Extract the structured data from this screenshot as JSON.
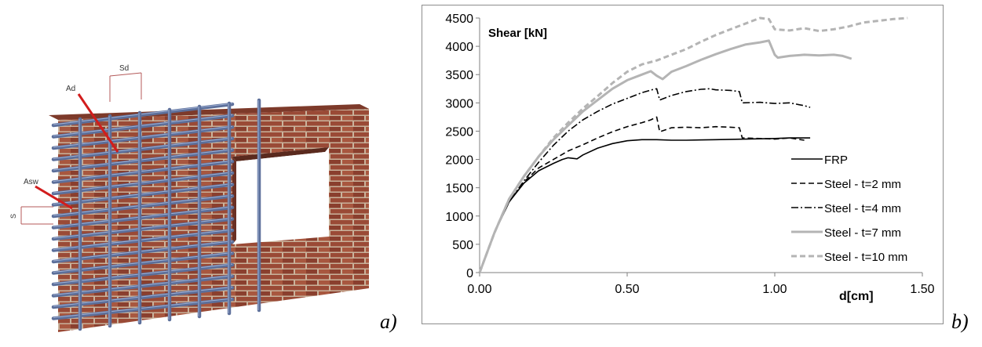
{
  "panels": {
    "a": {
      "letter": "a)",
      "labels": {
        "sd": "Sd",
        "ad": "Ad",
        "asw": "Asw",
        "s": "S"
      }
    },
    "b": {
      "letter": "b)"
    }
  },
  "colors": {
    "brick": "#9a4a36",
    "mortar": "#c9b39c",
    "bar": "#5c6f9a",
    "annotation_red": "#d21c1c",
    "black": "#000000",
    "grey": "#b4b4b4"
  },
  "chart_data": {
    "type": "line",
    "inner_label": "Shear [kN]",
    "xlabel": "d[cm]",
    "xlim": [
      0,
      1.5
    ],
    "ylim": [
      0,
      4500
    ],
    "xticks": [
      "0.00",
      "0.50",
      "1.00",
      "1.50"
    ],
    "yticks": [
      "0",
      "500",
      "1000",
      "1500",
      "2000",
      "2500",
      "3000",
      "3500",
      "4000",
      "4500"
    ],
    "grid": false,
    "legend_position": "bottom-right",
    "series": [
      {
        "name": "FRP",
        "color": "#000000",
        "dash": "solid",
        "points": [
          [
            0,
            0
          ],
          [
            0.05,
            700
          ],
          [
            0.1,
            1250
          ],
          [
            0.15,
            1580
          ],
          [
            0.2,
            1800
          ],
          [
            0.25,
            1930
          ],
          [
            0.28,
            2000
          ],
          [
            0.3,
            2030
          ],
          [
            0.33,
            2010
          ],
          [
            0.35,
            2080
          ],
          [
            0.4,
            2200
          ],
          [
            0.45,
            2280
          ],
          [
            0.5,
            2330
          ],
          [
            0.55,
            2350
          ],
          [
            0.6,
            2350
          ],
          [
            0.65,
            2340
          ],
          [
            0.7,
            2340
          ],
          [
            0.8,
            2350
          ],
          [
            0.9,
            2360
          ],
          [
            1.0,
            2370
          ],
          [
            1.05,
            2380
          ],
          [
            1.12,
            2380
          ]
        ]
      },
      {
        "name": "Steel - t=2 mm",
        "color": "#000000",
        "dash": "dashed",
        "points": [
          [
            0,
            0
          ],
          [
            0.05,
            700
          ],
          [
            0.1,
            1250
          ],
          [
            0.15,
            1600
          ],
          [
            0.2,
            1850
          ],
          [
            0.25,
            2000
          ],
          [
            0.3,
            2150
          ],
          [
            0.35,
            2260
          ],
          [
            0.4,
            2380
          ],
          [
            0.45,
            2490
          ],
          [
            0.5,
            2580
          ],
          [
            0.55,
            2650
          ],
          [
            0.58,
            2700
          ],
          [
            0.6,
            2750
          ],
          [
            0.61,
            2490
          ],
          [
            0.65,
            2560
          ],
          [
            0.7,
            2570
          ],
          [
            0.75,
            2560
          ],
          [
            0.8,
            2580
          ],
          [
            0.85,
            2570
          ],
          [
            0.88,
            2560
          ],
          [
            0.89,
            2380
          ],
          [
            0.95,
            2370
          ],
          [
            1.0,
            2360
          ],
          [
            1.05,
            2380
          ],
          [
            1.1,
            2340
          ]
        ]
      },
      {
        "name": "Steel - t=4 mm",
        "color": "#000000",
        "dash": "dashdot",
        "points": [
          [
            0,
            0
          ],
          [
            0.05,
            700
          ],
          [
            0.1,
            1250
          ],
          [
            0.15,
            1620
          ],
          [
            0.2,
            1950
          ],
          [
            0.25,
            2250
          ],
          [
            0.3,
            2500
          ],
          [
            0.35,
            2700
          ],
          [
            0.4,
            2850
          ],
          [
            0.45,
            2980
          ],
          [
            0.5,
            3080
          ],
          [
            0.55,
            3180
          ],
          [
            0.59,
            3240
          ],
          [
            0.6,
            3250
          ],
          [
            0.61,
            3050
          ],
          [
            0.65,
            3130
          ],
          [
            0.7,
            3200
          ],
          [
            0.75,
            3240
          ],
          [
            0.78,
            3250
          ],
          [
            0.8,
            3230
          ],
          [
            0.85,
            3220
          ],
          [
            0.88,
            3200
          ],
          [
            0.89,
            3000
          ],
          [
            0.95,
            3010
          ],
          [
            1.0,
            2990
          ],
          [
            1.05,
            3000
          ],
          [
            1.1,
            2950
          ],
          [
            1.12,
            2920
          ]
        ]
      },
      {
        "name": "Steel - t=7 mm",
        "color": "#b4b4b4",
        "dash": "solid",
        "points": [
          [
            0,
            0
          ],
          [
            0.05,
            700
          ],
          [
            0.1,
            1300
          ],
          [
            0.15,
            1700
          ],
          [
            0.2,
            2050
          ],
          [
            0.25,
            2350
          ],
          [
            0.3,
            2600
          ],
          [
            0.35,
            2850
          ],
          [
            0.4,
            3050
          ],
          [
            0.45,
            3250
          ],
          [
            0.5,
            3400
          ],
          [
            0.55,
            3500
          ],
          [
            0.58,
            3560
          ],
          [
            0.6,
            3480
          ],
          [
            0.62,
            3420
          ],
          [
            0.65,
            3550
          ],
          [
            0.7,
            3650
          ],
          [
            0.75,
            3760
          ],
          [
            0.8,
            3860
          ],
          [
            0.85,
            3950
          ],
          [
            0.9,
            4030
          ],
          [
            0.95,
            4070
          ],
          [
            0.98,
            4100
          ],
          [
            1.0,
            3850
          ],
          [
            1.01,
            3800
          ],
          [
            1.05,
            3830
          ],
          [
            1.1,
            3850
          ],
          [
            1.15,
            3840
          ],
          [
            1.2,
            3850
          ],
          [
            1.23,
            3830
          ],
          [
            1.26,
            3780
          ]
        ]
      },
      {
        "name": "Steel - t=10 mm",
        "color": "#b4b4b4",
        "dash": "dashed",
        "points": [
          [
            0,
            0
          ],
          [
            0.05,
            700
          ],
          [
            0.1,
            1300
          ],
          [
            0.15,
            1700
          ],
          [
            0.2,
            2050
          ],
          [
            0.25,
            2380
          ],
          [
            0.3,
            2650
          ],
          [
            0.35,
            2900
          ],
          [
            0.4,
            3120
          ],
          [
            0.45,
            3350
          ],
          [
            0.5,
            3550
          ],
          [
            0.55,
            3680
          ],
          [
            0.6,
            3750
          ],
          [
            0.65,
            3850
          ],
          [
            0.7,
            3950
          ],
          [
            0.75,
            4080
          ],
          [
            0.8,
            4200
          ],
          [
            0.85,
            4300
          ],
          [
            0.9,
            4400
          ],
          [
            0.95,
            4500
          ],
          [
            0.98,
            4480
          ],
          [
            1.0,
            4300
          ],
          [
            1.05,
            4280
          ],
          [
            1.1,
            4320
          ],
          [
            1.15,
            4270
          ],
          [
            1.2,
            4300
          ],
          [
            1.25,
            4350
          ],
          [
            1.3,
            4420
          ],
          [
            1.35,
            4450
          ],
          [
            1.4,
            4480
          ],
          [
            1.45,
            4500
          ]
        ]
      }
    ]
  }
}
